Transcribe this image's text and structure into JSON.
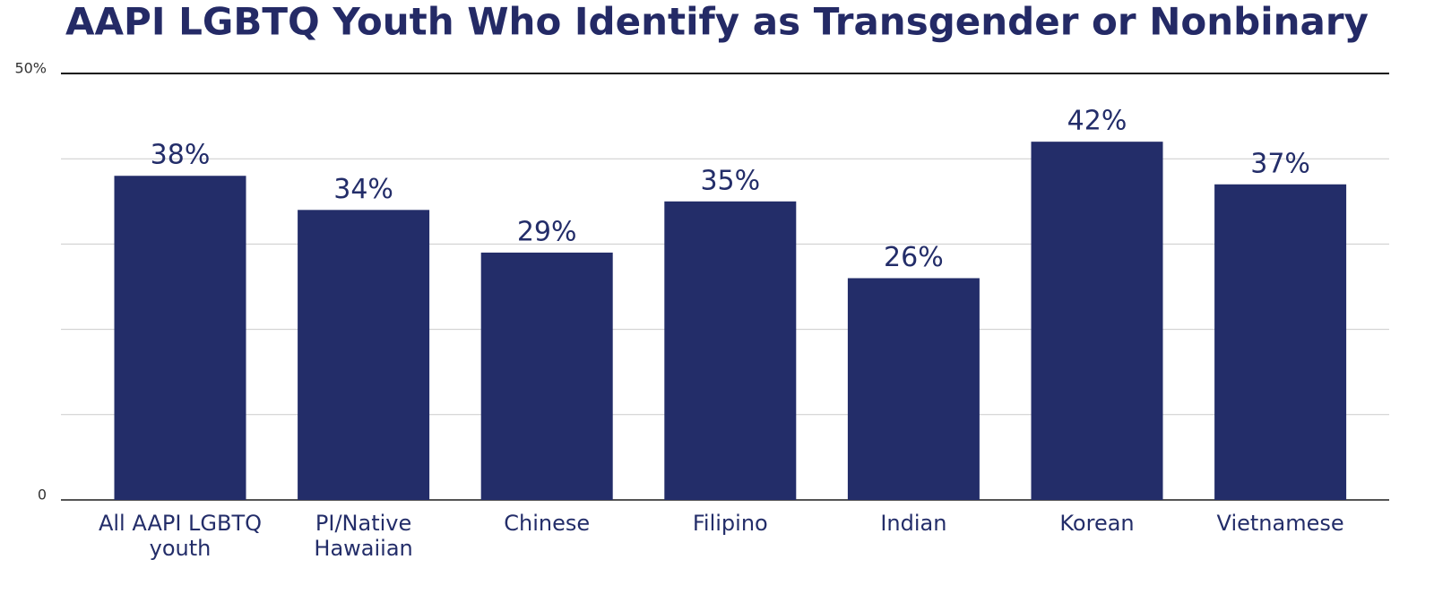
{
  "chart_data": {
    "type": "bar",
    "title": "AAPI LGBTQ Youth Who Identify as Transgender or Nonbinary",
    "categories": [
      "All AAPI LGBTQ youth",
      "PI/Native Hawaiian",
      "Chinese",
      "Filipino",
      "Indian",
      "Korean",
      "Vietnamese"
    ],
    "values": [
      38,
      34,
      29,
      35,
      26,
      42,
      37
    ],
    "value_labels": [
      "38%",
      "34%",
      "29%",
      "35%",
      "26%",
      "42%",
      "37%"
    ],
    "color": "#232d69",
    "ylim": [
      0,
      50
    ],
    "yticks": [
      0,
      {
        "value": 10,
        "label": null
      },
      {
        "value": 20,
        "label": null
      },
      {
        "value": 30,
        "label": null
      },
      {
        "value": 40,
        "label": null
      },
      {
        "value": 50,
        "label": "50%"
      }
    ],
    "grid": true
  }
}
